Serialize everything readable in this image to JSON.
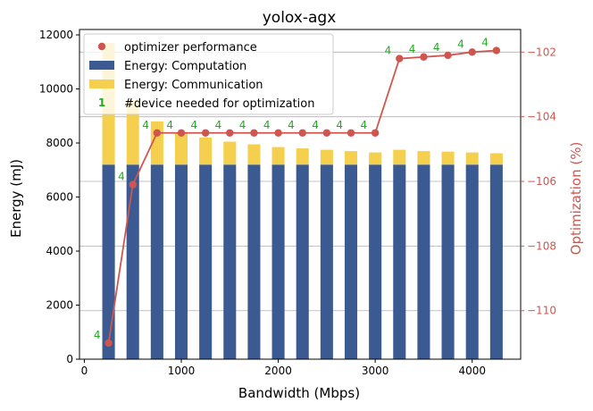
{
  "chart_data": {
    "type": "bar",
    "title": "yolox-agx",
    "xlabel": "Bandwidth (Mbps)",
    "ylabel": "Energy (mJ)",
    "y2label": "Optimization (%)",
    "xlim": [
      -50,
      4500
    ],
    "ylim": [
      0,
      12200
    ],
    "y2lim": [
      -111.5,
      -101.3
    ],
    "x_ticks": [
      0,
      1000,
      2000,
      3000,
      4000
    ],
    "y_ticks": [
      0,
      2000,
      4000,
      6000,
      8000,
      10000,
      12000
    ],
    "y2_ticks": [
      -110,
      -108,
      -106,
      -104,
      -102
    ],
    "y2_grid": true,
    "x": [
      250,
      500,
      750,
      1000,
      1250,
      1500,
      1750,
      2000,
      2250,
      2500,
      2750,
      3000,
      3250,
      3500,
      3750,
      4000,
      4250
    ],
    "series": [
      {
        "name": "Energy: Computation",
        "kind": "bar",
        "color": "#3b5a92",
        "values": [
          7200,
          7200,
          7200,
          7200,
          7200,
          7200,
          7200,
          7200,
          7200,
          7200,
          7200,
          7200,
          7200,
          7200,
          7200,
          7200,
          7200
        ]
      },
      {
        "name": "Energy: Communication",
        "kind": "bar",
        "color": "#f5cf4e",
        "values": [
          4500,
          2400,
          1600,
          1150,
          1000,
          850,
          750,
          650,
          600,
          550,
          500,
          450,
          550,
          500,
          480,
          450,
          420
        ]
      },
      {
        "name": "optimizer performance",
        "kind": "line",
        "axis": "right",
        "color": "#d1554f",
        "values": [
          -111.0,
          -106.1,
          -104.5,
          -104.5,
          -104.5,
          -104.5,
          -104.5,
          -104.5,
          -104.5,
          -104.5,
          -104.5,
          -104.5,
          -102.2,
          -102.15,
          -102.1,
          -102.0,
          -101.95
        ]
      }
    ],
    "device_labels": {
      "name": "#device needed for optimization",
      "color": "#22aa22",
      "legend_marker": "1",
      "values": [
        "4",
        "4",
        "4",
        "4",
        "4",
        "4",
        "4",
        "4",
        "4",
        "4",
        "4",
        "4",
        "4",
        "4",
        "4",
        "4",
        "4"
      ]
    },
    "legend": "upper-left"
  }
}
